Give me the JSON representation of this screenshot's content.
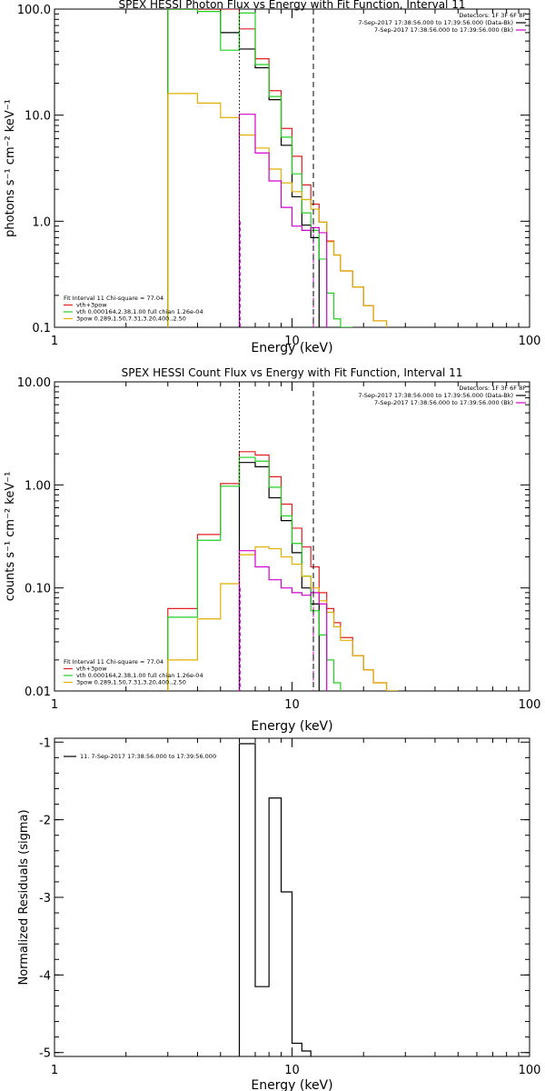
{
  "colors": {
    "black": "#000000",
    "red": "#e02020",
    "green": "#20d020",
    "yellow": "#e0b000",
    "magenta": "#d000d0"
  },
  "chart_data": [
    {
      "type": "line",
      "title": "SPEX HESSI Photon Flux vs Energy with Fit Function, Interval 11",
      "xlabel": "Energy (keV)",
      "ylabel": "photons s⁻¹ cm⁻² keV⁻¹",
      "xscale": "log",
      "yscale": "log",
      "xlim": [
        1,
        100
      ],
      "ylim": [
        0.1,
        100
      ],
      "xticks": [
        {
          "v": 1,
          "label": "1"
        },
        {
          "v": 10,
          "label": "10"
        },
        {
          "v": 100,
          "label": "100"
        }
      ],
      "yticks": [
        {
          "v": 0.1,
          "label": "0.1"
        },
        {
          "v": 1,
          "label": "1.0"
        },
        {
          "v": 10,
          "label": "10.0"
        },
        {
          "v": 100,
          "label": "100.0"
        }
      ],
      "edges": [
        3,
        4,
        5,
        6,
        7,
        8,
        9,
        10,
        11,
        12,
        13,
        14,
        15,
        16,
        18,
        20,
        22,
        25,
        28
      ],
      "series": [
        {
          "color": "black",
          "values": [
            100,
            100,
            60,
            42,
            28,
            14,
            5.2,
            1.7,
            0.92,
            0.7,
            null,
            null,
            null,
            null,
            null,
            null,
            null,
            null
          ]
        },
        {
          "color": "red",
          "values": [
            100,
            100,
            100,
            65,
            34,
            17,
            7.5,
            4.1,
            2.2,
            1.45,
            0.98,
            0.65,
            0.48,
            0.34,
            0.24,
            0.16,
            0.115,
            null
          ]
        },
        {
          "color": "green",
          "values": [
            100,
            95,
            41,
            92,
            30,
            15,
            6.2,
            2.8,
            1.2,
            0.82,
            0.44,
            0.21,
            0.12,
            0.075,
            null,
            null,
            null,
            null
          ]
        },
        {
          "color": "yellow",
          "values": [
            16,
            13,
            9.5,
            6.5,
            4.9,
            3.1,
            2.3,
            1.9,
            1.6,
            1.3,
            0.98,
            0.64,
            0.48,
            0.34,
            0.24,
            0.16,
            0.115,
            null
          ]
        },
        {
          "color": "magenta",
          "values": [
            null,
            null,
            null,
            10.2,
            4.4,
            2.4,
            1.35,
            0.9,
            0.82,
            0.87,
            0.78,
            null,
            null,
            null,
            null,
            null,
            null,
            null
          ]
        }
      ],
      "vlines": [
        {
          "x": 6,
          "style": "dotted",
          "color": "black"
        },
        {
          "x": 12.3,
          "style": "dashed",
          "color": "black"
        }
      ],
      "color_vlines": [
        {
          "x": 6.05,
          "color": "magenta"
        },
        {
          "x": 12.3,
          "color": "magenta"
        }
      ],
      "legend_top": {
        "header": "Detectors: 1F 3F 6F 8F",
        "entries": [
          {
            "text": "7-Sep-2017 17:38:56.000 to 17:39:56.000 (Data-Bk)",
            "color": "black"
          },
          {
            "text": "7-Sep-2017 17:38:56.000 to 17:39:56.000 (Bk)",
            "color": "magenta"
          }
        ]
      },
      "legend_bottom": {
        "header": "Fit Interval  11    Chi-square = 77.04",
        "entries": [
          {
            "text": "vth+3pow",
            "color": "red"
          },
          {
            "text": "vth 0.000164,2.38,1.00   full chian 1.26e-04",
            "color": "green"
          },
          {
            "text": "3pow 0.289,1.50,7.31,3.20,400.,2.50",
            "color": "yellow"
          }
        ]
      }
    },
    {
      "type": "line",
      "title": "SPEX HESSI Count Flux vs Energy with Fit Function, Interval 11",
      "xlabel": "Energy (keV)",
      "ylabel": "counts s⁻¹ cm⁻² keV⁻¹",
      "xscale": "log",
      "yscale": "log",
      "xlim": [
        1,
        100
      ],
      "ylim": [
        0.01,
        10
      ],
      "xticks": [
        {
          "v": 1,
          "label": "1"
        },
        {
          "v": 10,
          "label": "10"
        },
        {
          "v": 100,
          "label": "100"
        }
      ],
      "yticks": [
        {
          "v": 0.01,
          "label": "0.01"
        },
        {
          "v": 0.1,
          "label": "0.10"
        },
        {
          "v": 1,
          "label": "1.00"
        },
        {
          "v": 10,
          "label": "10.00"
        }
      ],
      "edges": [
        3,
        4,
        5,
        6,
        7,
        8,
        9,
        10,
        11,
        12,
        13,
        14,
        15,
        16,
        18,
        20,
        22,
        25,
        28
      ],
      "series": [
        {
          "color": "black",
          "values": [
            null,
            null,
            null,
            1.65,
            1.5,
            0.75,
            0.45,
            0.22,
            0.1,
            0.07,
            null,
            null,
            null,
            null,
            null,
            null,
            null,
            null
          ]
        },
        {
          "color": "red",
          "values": [
            0.063,
            0.33,
            1.03,
            2.1,
            1.95,
            1.2,
            0.65,
            0.38,
            0.25,
            0.16,
            0.09,
            0.063,
            0.046,
            0.033,
            0.022,
            0.016,
            0.012,
            0.01
          ]
        },
        {
          "color": "green",
          "values": [
            0.052,
            0.29,
            0.97,
            1.85,
            1.7,
            0.95,
            0.5,
            0.27,
            0.13,
            0.06,
            0.035,
            0.02,
            0.012,
            null,
            null,
            null,
            null,
            null
          ]
        },
        {
          "color": "yellow",
          "values": [
            0.02,
            0.05,
            0.11,
            0.21,
            0.25,
            0.24,
            0.2,
            0.17,
            0.13,
            0.1,
            0.075,
            0.058,
            0.042,
            0.031,
            0.022,
            0.016,
            0.012,
            0.01
          ]
        },
        {
          "color": "magenta",
          "values": [
            null,
            null,
            null,
            0.23,
            0.16,
            0.12,
            0.1,
            0.09,
            0.085,
            0.09,
            0.07,
            null,
            null,
            null,
            null,
            null,
            null,
            null
          ]
        }
      ],
      "vlines": [
        {
          "x": 6,
          "style": "dotted",
          "color": "black"
        },
        {
          "x": 12.3,
          "style": "dashed",
          "color": "black"
        }
      ],
      "color_vlines": [
        {
          "x": 6.05,
          "color": "magenta"
        },
        {
          "x": 12.3,
          "color": "magenta"
        }
      ],
      "legend_top": {
        "header": "Detectors: 1F 3F 6F 8F",
        "entries": [
          {
            "text": "7-Sep-2017 17:38:56.000 to 17:39:56.000 (Data-Bk)",
            "color": "black"
          },
          {
            "text": "7-Sep-2017 17:38:56.000 to 17:39:56.000 (Bk)",
            "color": "magenta"
          }
        ]
      },
      "legend_bottom": {
        "header": "Fit Interval  11    Chi-square = 77.04",
        "entries": [
          {
            "text": "vth+3pow",
            "color": "red"
          },
          {
            "text": "vth 0.000164,2.38,1.00   full chian 1.26e-04",
            "color": "green"
          },
          {
            "text": "3pow 0.289,1.50,7.31,3.20,400.,2.50",
            "color": "yellow"
          }
        ]
      }
    },
    {
      "type": "line",
      "title": "",
      "xlabel": "Energy (keV)",
      "ylabel": "Normalized Residuals (sigma)",
      "xscale": "log",
      "yscale": "linear",
      "xlim": [
        1,
        100
      ],
      "ylim": [
        -5.05,
        -0.95
      ],
      "xticks": [
        {
          "v": 1,
          "label": "1"
        },
        {
          "v": 10,
          "label": "10"
        },
        {
          "v": 100,
          "label": "100"
        }
      ],
      "yticks": [
        {
          "v": -5,
          "label": "-5"
        },
        {
          "v": -4,
          "label": "-4"
        },
        {
          "v": -3,
          "label": "-3"
        },
        {
          "v": -2,
          "label": "-2"
        },
        {
          "v": -1,
          "label": "-1"
        }
      ],
      "edges": [
        6,
        7,
        8,
        9,
        10,
        11,
        12
      ],
      "series": [
        {
          "color": "black",
          "values": [
            -1.02,
            -4.15,
            -1.72,
            -2.93,
            -4.88,
            -4.98
          ]
        }
      ],
      "legend_top": {
        "header": "",
        "entries": [
          {
            "text": "11.  7-Sep-2017 17:38:56.000 to 17:39:56.000",
            "color": "black"
          }
        ]
      }
    }
  ]
}
